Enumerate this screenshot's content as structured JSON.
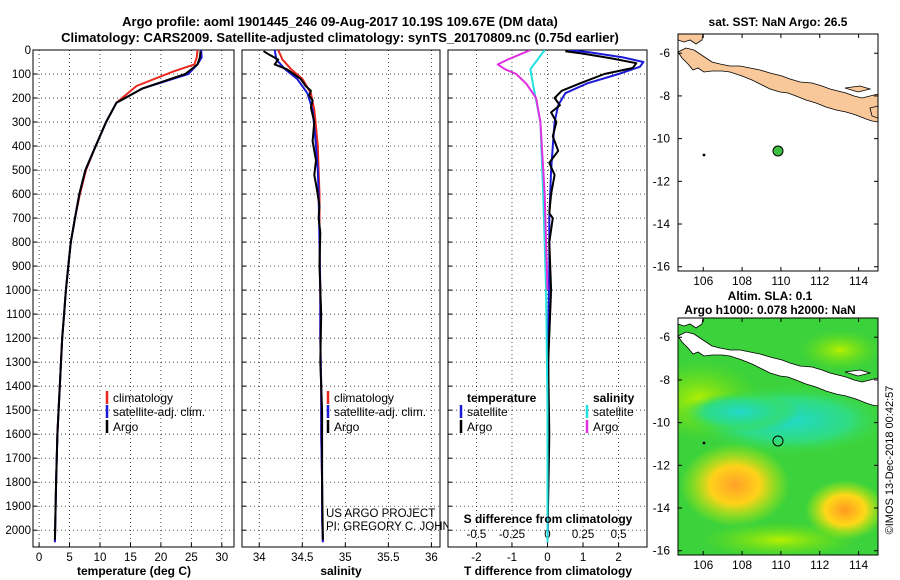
{
  "header": {
    "title_line1": "Argo profile: aoml 1901445_246 09-Aug-2017 10.19S 109.67E (DM data)",
    "title_line2": "Climatology: CARS2009. Satellite-adjusted climatology: synTS_20170809.nc (0.75d earlier)"
  },
  "colors": {
    "climatology": "#e8271d",
    "satellite": "#1a1ad6",
    "argo": "#000000",
    "sat_salinity": "#22e0e0",
    "argo_salinity": "#e030e0",
    "land": "#f8c89a"
  },
  "chart_data": [
    {
      "type": "line",
      "id": "temperature",
      "xlabel": "temperature (deg C)",
      "xlim": [
        -1,
        32
      ],
      "ylim": [
        2070,
        0
      ],
      "xticks": [
        0,
        5,
        10,
        15,
        20,
        25,
        30
      ],
      "yticks": [
        0,
        100,
        200,
        300,
        400,
        500,
        600,
        700,
        800,
        900,
        1000,
        1100,
        1200,
        1300,
        1400,
        1500,
        1600,
        1700,
        1800,
        1900,
        2000
      ],
      "legend": [
        "climatology",
        "satellite-adj. clim.",
        "Argo"
      ],
      "series": [
        {
          "name": "climatology",
          "color": "#e8271d",
          "x": [
            26.0,
            25.9,
            25.5,
            22.0,
            16.0,
            12.7,
            11.0,
            9.3,
            7.7,
            6.7,
            5.9,
            5.2,
            4.8,
            4.4,
            4.1,
            3.8,
            3.6,
            3.4,
            3.2,
            3.0,
            2.8,
            2.6
          ],
          "y": [
            0,
            30,
            60,
            90,
            150,
            220,
            300,
            400,
            500,
            600,
            700,
            800,
            900,
            1000,
            1100,
            1200,
            1300,
            1400,
            1500,
            1600,
            1800,
            2050
          ]
        },
        {
          "name": "satellite-adj. clim.",
          "color": "#1a1ad6",
          "x": [
            26.6,
            26.7,
            26.0,
            24.5,
            17.0,
            12.7,
            11.0,
            9.3,
            7.6,
            6.6,
            5.9,
            5.2,
            4.8,
            4.4,
            4.1,
            3.8,
            3.6,
            3.4,
            3.2,
            3.0,
            2.8,
            2.6
          ],
          "y": [
            0,
            30,
            60,
            100,
            160,
            220,
            300,
            400,
            500,
            600,
            700,
            800,
            900,
            1000,
            1100,
            1200,
            1300,
            1400,
            1500,
            1600,
            1800,
            2050
          ]
        },
        {
          "name": "Argo",
          "color": "#000000",
          "x": [
            26.5,
            26.4,
            26.0,
            24.0,
            17.0,
            12.7,
            11.0,
            9.3,
            7.6,
            6.6,
            5.9,
            5.2,
            4.8,
            4.4,
            4.1,
            3.8,
            3.6,
            3.4,
            3.2,
            3.0,
            2.8,
            2.6
          ],
          "y": [
            5,
            30,
            60,
            100,
            160,
            220,
            300,
            400,
            500,
            600,
            700,
            800,
            900,
            1000,
            1100,
            1200,
            1300,
            1400,
            1500,
            1600,
            1800,
            2040
          ]
        }
      ]
    },
    {
      "type": "line",
      "id": "salinity",
      "xlabel": "salinity",
      "xlim": [
        33.8,
        36.1
      ],
      "ylim": [
        2070,
        0
      ],
      "xticks": [
        34,
        34.5,
        35,
        35.5,
        36
      ],
      "xticklabels": [
        "34",
        "34.5",
        "35",
        "35.5",
        "36"
      ],
      "legend": [
        "climatology",
        "satellite-adj. clim.",
        "Argo"
      ],
      "series": [
        {
          "name": "climatology",
          "color": "#e8271d",
          "x": [
            34.22,
            34.27,
            34.37,
            34.5,
            34.6,
            34.64,
            34.66,
            34.68,
            34.69,
            34.7,
            34.7,
            34.71,
            34.71,
            34.72,
            34.72,
            34.73,
            34.73,
            34.74
          ],
          "y": [
            0,
            40,
            80,
            120,
            180,
            250,
            320,
            400,
            500,
            600,
            800,
            1000,
            1200,
            1400,
            1600,
            1800,
            1950,
            2050
          ]
        },
        {
          "name": "satellite-adj. clim.",
          "color": "#1a1ad6",
          "x": [
            34.18,
            34.2,
            34.3,
            34.44,
            34.56,
            34.62,
            34.64,
            34.66,
            34.68,
            34.69,
            34.7,
            34.71,
            34.71,
            34.72,
            34.72,
            34.73,
            34.73,
            34.74
          ],
          "y": [
            0,
            40,
            80,
            120,
            180,
            250,
            320,
            400,
            500,
            600,
            800,
            1000,
            1200,
            1400,
            1600,
            1800,
            1950,
            2050
          ]
        },
        {
          "name": "Argo",
          "color": "#000000",
          "x": [
            34.05,
            34.12,
            34.22,
            34.18,
            34.32,
            34.4,
            34.48,
            34.54,
            34.6,
            34.58,
            34.62,
            34.6,
            34.64,
            34.62,
            34.66,
            34.64,
            34.67,
            34.7,
            34.69,
            34.71,
            34.7,
            34.72,
            34.71,
            34.73,
            34.73,
            34.74
          ],
          "y": [
            5,
            20,
            40,
            60,
            80,
            100,
            120,
            150,
            170,
            190,
            210,
            240,
            300,
            380,
            460,
            520,
            580,
            650,
            700,
            760,
            900,
            1100,
            1300,
            1500,
            1800,
            2040
          ]
        }
      ],
      "annotation": [
        "US ARGO PROJECT",
        "PI: GREGORY C. JOHNSON"
      ]
    },
    {
      "type": "line",
      "id": "differences",
      "xlabel": "T difference from climatology",
      "xlabel_top": "S difference from climatology",
      "xlim": [
        -2.8,
        2.8
      ],
      "ylim": [
        2070,
        0
      ],
      "xticks": [
        -2,
        -1,
        0,
        1,
        2
      ],
      "sticks": [
        -0.5,
        -0.25,
        0,
        0.25,
        0.5
      ],
      "sticklabels": [
        "-0.5",
        "-0.25",
        "0",
        "0.25",
        "0.5"
      ],
      "legend_temperature": [
        "temperature",
        "satellite",
        "Argo"
      ],
      "legend_salinity": [
        "salinity",
        "satellite",
        "Argo"
      ],
      "series": [
        {
          "name": "temperature satellite",
          "color": "#1a1ad6",
          "x": [
            0.6,
            1.2,
            2.1,
            2.7,
            2.6,
            2.0,
            1.1,
            0.5,
            0.3,
            0.2,
            0.15,
            0.1,
            0.05,
            0.05,
            0.03,
            0.02,
            0.02,
            0.01,
            0.0
          ],
          "y": [
            0,
            10,
            30,
            50,
            70,
            100,
            140,
            180,
            230,
            300,
            400,
            500,
            700,
            900,
            1100,
            1400,
            1700,
            1900,
            2050
          ]
        },
        {
          "name": "temperature Argo",
          "color": "#000000",
          "x": [
            0.5,
            1.0,
            1.8,
            2.5,
            2.4,
            1.6,
            0.9,
            0.4,
            0.2,
            0.35,
            0.1,
            0.25,
            0.15,
            0.3,
            0.05,
            0.2,
            0.1,
            0.05,
            0.15,
            0.05,
            0.1,
            0.02,
            0.05,
            0.0
          ],
          "y": [
            5,
            15,
            35,
            55,
            75,
            100,
            140,
            170,
            200,
            230,
            260,
            300,
            360,
            420,
            470,
            520,
            600,
            680,
            700,
            800,
            1000,
            1300,
            1600,
            2040
          ]
        },
        {
          "name": "salinity satellite",
          "color": "#22e0e0",
          "x": [
            -0.02,
            -0.07,
            -0.12,
            -0.1,
            -0.05,
            -0.03,
            -0.01,
            0.0,
            0.0
          ],
          "y": [
            0,
            40,
            80,
            150,
            300,
            600,
            1000,
            1500,
            2050
          ]
        },
        {
          "name": "salinity Argo",
          "color": "#e030e0",
          "x": [
            -0.12,
            -0.2,
            -0.28,
            -0.35,
            -0.3,
            -0.22,
            -0.15,
            -0.08,
            -0.05,
            -0.02,
            0.0
          ],
          "y": [
            0,
            20,
            40,
            60,
            80,
            100,
            140,
            200,
            300,
            600,
            1000
          ]
        }
      ]
    },
    {
      "type": "map",
      "id": "sst_map",
      "title": "sat. SST: NaN Argo: 26.5",
      "xlim": [
        104.7,
        115
      ],
      "ylim": [
        -16.2,
        -5.1
      ],
      "xticks": [
        106,
        108,
        110,
        112,
        114
      ],
      "yticks": [
        -6,
        -8,
        -10,
        -12,
        -14,
        -16
      ],
      "float_position": [
        109.67,
        -10.19
      ]
    },
    {
      "type": "map",
      "id": "sla_map",
      "title_line1": "Altim. SLA: 0.1",
      "title_line2": "Argo h1000: 0.078 h2000: NaN",
      "xlim": [
        104.7,
        115
      ],
      "ylim": [
        -16.2,
        -5.1
      ],
      "xticks": [
        106,
        108,
        110,
        112,
        114
      ],
      "yticks": [
        -6,
        -8,
        -10,
        -12,
        -14,
        -16
      ],
      "float_position": [
        109.67,
        -10.19
      ]
    }
  ],
  "footer": {
    "stamp": "©IMOS 13-Dec-2018 00:42:57"
  }
}
